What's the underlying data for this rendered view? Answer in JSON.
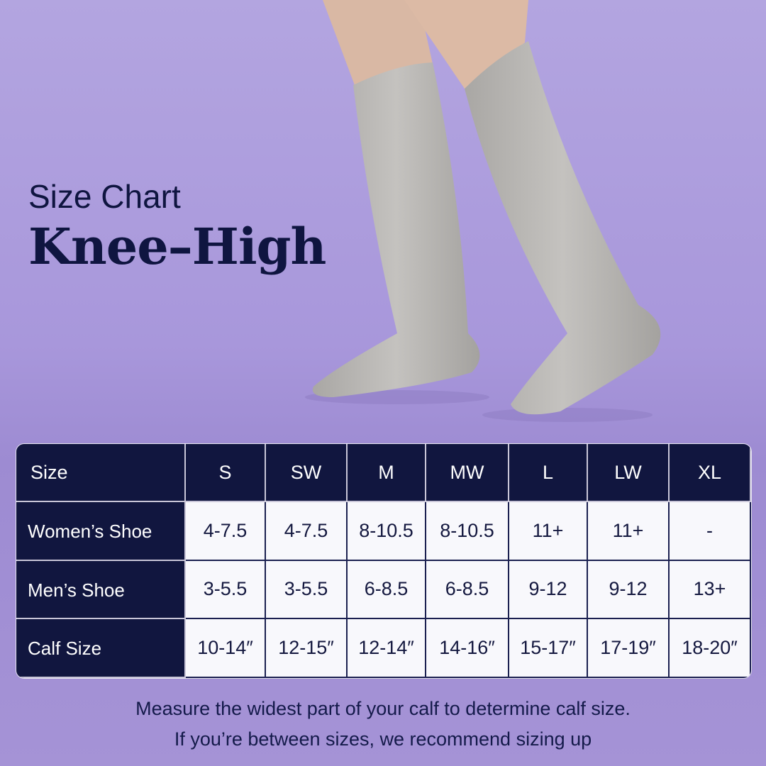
{
  "heading": {
    "subtitle": "Size Chart",
    "title": "Knee–High"
  },
  "table": {
    "header": [
      "Size",
      "S",
      "SW",
      "M",
      "MW",
      "L",
      "LW",
      "XL"
    ],
    "rows": [
      {
        "label": "Women’s Shoe",
        "values": [
          "4-7.5",
          "4-7.5",
          "8-10.5",
          "8-10.5",
          "11+",
          "11+",
          "-"
        ]
      },
      {
        "label": "Men’s Shoe",
        "values": [
          "3-5.5",
          "3-5.5",
          "6-8.5",
          "6-8.5",
          "9-12",
          "9-12",
          "13+"
        ]
      },
      {
        "label": "Calf Size",
        "values": [
          "10-14″",
          "12-15″",
          "12-14″",
          "14-16″",
          "15-17″",
          "17-19″",
          "18-20″"
        ]
      }
    ]
  },
  "footer": {
    "line1": "Measure the widest part of your calf to determine calf size.",
    "line2": "If you’re between sizes, we recommend sizing up"
  },
  "colors": {
    "navy": "#11163f",
    "background": "#a897db",
    "sock": "#b5b3b0"
  }
}
